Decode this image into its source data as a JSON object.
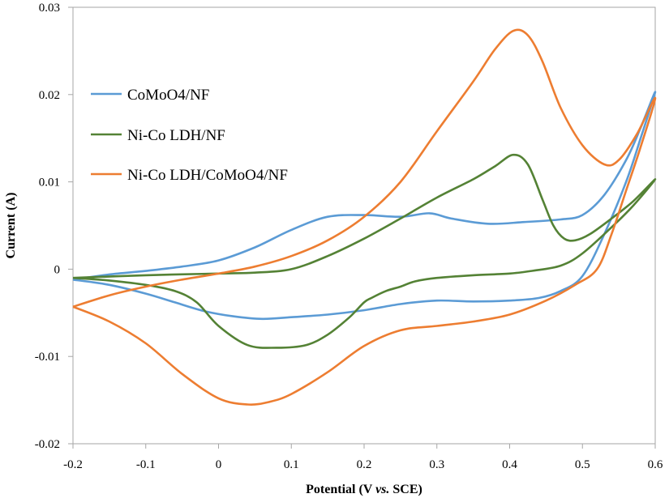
{
  "chart_data": {
    "type": "line",
    "title": "",
    "xlabel": "Potential (V",
    "xlabel_italic": "vs.",
    "xlabel_end": "SCE)",
    "ylabel": "Current  (A)",
    "xlim": [
      -0.2,
      0.6
    ],
    "ylim": [
      -0.02,
      0.03
    ],
    "xticks": [
      -0.2,
      -0.1,
      0,
      0.1,
      0.2,
      0.3,
      0.4,
      0.5,
      0.6
    ],
    "xtick_labels": [
      "-0.2",
      "-0.1",
      "0",
      "0.1",
      "0.2",
      "0.3",
      "0.4",
      "0.5",
      "0.6"
    ],
    "yticks": [
      -0.02,
      -0.01,
      0,
      0.01,
      0.02,
      0.03
    ],
    "ytick_labels": [
      "-0.02",
      "-0.01",
      "0",
      "0.01",
      "0.02",
      "0.03"
    ],
    "grid": false,
    "legend_position": "upper-left",
    "series": [
      {
        "name": "CoMoO4/NF",
        "color": "#5b9bd5",
        "points": [
          [
            -0.2,
            -0.0012
          ],
          [
            -0.15,
            -0.0006
          ],
          [
            -0.1,
            -0.0002
          ],
          [
            -0.05,
            0.0003
          ],
          [
            0.0,
            0.001
          ],
          [
            0.05,
            0.0025
          ],
          [
            0.1,
            0.0045
          ],
          [
            0.15,
            0.006
          ],
          [
            0.2,
            0.0062
          ],
          [
            0.25,
            0.006
          ],
          [
            0.29,
            0.0064
          ],
          [
            0.32,
            0.0058
          ],
          [
            0.37,
            0.0052
          ],
          [
            0.42,
            0.0054
          ],
          [
            0.47,
            0.0057
          ],
          [
            0.5,
            0.0062
          ],
          [
            0.53,
            0.0085
          ],
          [
            0.56,
            0.0125
          ],
          [
            0.58,
            0.0162
          ],
          [
            0.6,
            0.0203
          ],
          [
            0.58,
            0.015
          ],
          [
            0.56,
            0.01
          ],
          [
            0.53,
            0.004
          ],
          [
            0.5,
            -0.0008
          ],
          [
            0.47,
            -0.0025
          ],
          [
            0.44,
            -0.0033
          ],
          [
            0.4,
            -0.0036
          ],
          [
            0.35,
            -0.0037
          ],
          [
            0.3,
            -0.0036
          ],
          [
            0.25,
            -0.004
          ],
          [
            0.2,
            -0.0047
          ],
          [
            0.15,
            -0.0052
          ],
          [
            0.1,
            -0.0055
          ],
          [
            0.06,
            -0.0057
          ],
          [
            0.02,
            -0.0054
          ],
          [
            -0.02,
            -0.0048
          ],
          [
            -0.06,
            -0.0038
          ],
          [
            -0.1,
            -0.0028
          ],
          [
            -0.15,
            -0.0018
          ],
          [
            -0.2,
            -0.0012
          ]
        ]
      },
      {
        "name": "Ni-Co LDH/NF",
        "color": "#548235",
        "points": [
          [
            -0.2,
            -0.001
          ],
          [
            -0.1,
            -0.0007
          ],
          [
            0.0,
            -0.0005
          ],
          [
            0.05,
            -0.0004
          ],
          [
            0.1,
            0.0
          ],
          [
            0.15,
            0.0015
          ],
          [
            0.2,
            0.0035
          ],
          [
            0.25,
            0.0058
          ],
          [
            0.3,
            0.0082
          ],
          [
            0.35,
            0.0103
          ],
          [
            0.38,
            0.0118
          ],
          [
            0.405,
            0.0131
          ],
          [
            0.425,
            0.012
          ],
          [
            0.445,
            0.008
          ],
          [
            0.46,
            0.005
          ],
          [
            0.475,
            0.0035
          ],
          [
            0.49,
            0.0033
          ],
          [
            0.51,
            0.004
          ],
          [
            0.54,
            0.0058
          ],
          [
            0.57,
            0.0078
          ],
          [
            0.6,
            0.0103
          ],
          [
            0.57,
            0.0073
          ],
          [
            0.54,
            0.0048
          ],
          [
            0.5,
            0.0018
          ],
          [
            0.47,
            0.0004
          ],
          [
            0.43,
            -0.0002
          ],
          [
            0.4,
            -0.0005
          ],
          [
            0.35,
            -0.0007
          ],
          [
            0.3,
            -0.001
          ],
          [
            0.27,
            -0.0014
          ],
          [
            0.25,
            -0.002
          ],
          [
            0.23,
            -0.0025
          ],
          [
            0.21,
            -0.0033
          ],
          [
            0.2,
            -0.0038
          ],
          [
            0.18,
            -0.0055
          ],
          [
            0.15,
            -0.0075
          ],
          [
            0.12,
            -0.0087
          ],
          [
            0.08,
            -0.009
          ],
          [
            0.04,
            -0.0087
          ],
          [
            0.0,
            -0.0065
          ],
          [
            -0.03,
            -0.0038
          ],
          [
            -0.06,
            -0.0025
          ],
          [
            -0.1,
            -0.0018
          ],
          [
            -0.15,
            -0.0013
          ],
          [
            -0.2,
            -0.001
          ]
        ]
      },
      {
        "name": "Ni-Co LDH/CoMoO4/NF",
        "color": "#ed7d31",
        "points": [
          [
            -0.2,
            -0.0043
          ],
          [
            -0.15,
            -0.003
          ],
          [
            -0.1,
            -0.002
          ],
          [
            -0.05,
            -0.0012
          ],
          [
            0.0,
            -0.0005
          ],
          [
            0.05,
            0.0003
          ],
          [
            0.1,
            0.0015
          ],
          [
            0.15,
            0.0033
          ],
          [
            0.2,
            0.006
          ],
          [
            0.25,
            0.01
          ],
          [
            0.3,
            0.0158
          ],
          [
            0.35,
            0.0215
          ],
          [
            0.38,
            0.0252
          ],
          [
            0.405,
            0.0273
          ],
          [
            0.425,
            0.0268
          ],
          [
            0.445,
            0.0238
          ],
          [
            0.47,
            0.0185
          ],
          [
            0.5,
            0.0142
          ],
          [
            0.53,
            0.012
          ],
          [
            0.55,
            0.0125
          ],
          [
            0.575,
            0.0155
          ],
          [
            0.6,
            0.0196
          ],
          [
            0.58,
            0.014
          ],
          [
            0.56,
            0.009
          ],
          [
            0.54,
            0.004
          ],
          [
            0.52,
            0.0
          ],
          [
            0.49,
            -0.0018
          ],
          [
            0.45,
            -0.0036
          ],
          [
            0.4,
            -0.0052
          ],
          [
            0.35,
            -0.006
          ],
          [
            0.3,
            -0.0065
          ],
          [
            0.25,
            -0.007
          ],
          [
            0.2,
            -0.0088
          ],
          [
            0.15,
            -0.0118
          ],
          [
            0.1,
            -0.0143
          ],
          [
            0.07,
            -0.0152
          ],
          [
            0.04,
            -0.0155
          ],
          [
            0.0,
            -0.0148
          ],
          [
            -0.05,
            -0.012
          ],
          [
            -0.1,
            -0.0085
          ],
          [
            -0.15,
            -0.006
          ],
          [
            -0.2,
            -0.0043
          ]
        ]
      }
    ]
  }
}
